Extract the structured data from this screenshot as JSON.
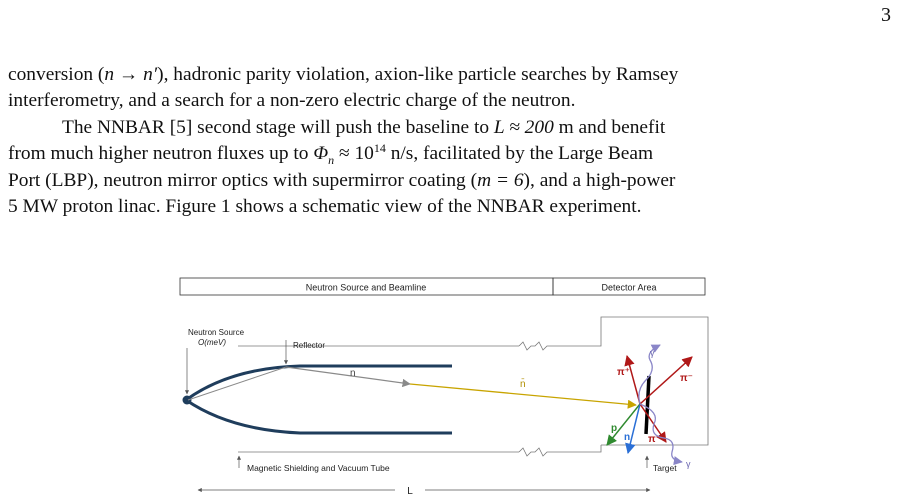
{
  "page_number": "3",
  "paragraph1": {
    "line1_a": "conversion (",
    "line1_math": "n → n′",
    "line1_b": "), hadronic parity violation, axion-like particle searches by Ramsey",
    "line2": "interferometry, and a search for a non-zero electric charge of the neutron."
  },
  "paragraph2": {
    "l1_a": "The NNBAR [5] second stage will push the baseline to ",
    "l1_math": "L ≈ 200",
    "l1_b": " m and benefit",
    "l2_a": "from much higher neutron fluxes up to ",
    "l2_phi": "Φ",
    "l2_sub": "n",
    "l2_approx": " ≈ 10",
    "l2_exp": "14",
    "l2_b": " n/s, facilitated by the Large Beam",
    "l3_a": "Port (LBP), neutron mirror optics with supermirror coating (",
    "l3_math": "m = 6",
    "l3_b": "), and a high-power",
    "l4": "5 MW proton linac. Figure 1 shows a schematic view of the NNBAR experiment."
  },
  "figure": {
    "header_left": "Neutron Source and Beamline",
    "header_right": "Detector Area",
    "neutron_source_label": "Neutron Source",
    "neutron_source_energy": "O(meV)",
    "reflector_label": "Reflector",
    "neutron_label": "n",
    "antineutron_label": "n̄",
    "pi_plus_top": "π⁺",
    "gamma_top": "γ",
    "pi_minus_top": "π⁻",
    "p_label": "p",
    "n_label_bottom": "n",
    "pi_minus_bottom": "π⁻",
    "gamma_bottom": "γ",
    "shield_label": "Magnetic Shielding and Vacuum Tube",
    "target_label": "Target",
    "baseline_label": "L",
    "colors": {
      "beamline": "#1f3d5c",
      "neutron": "#8a8a8a",
      "antineutron": "#c8a400",
      "pion": "#b01818",
      "proton": "#2f8a2f",
      "neutron_out": "#2a6fd6",
      "gamma": "#8a86c8"
    }
  }
}
